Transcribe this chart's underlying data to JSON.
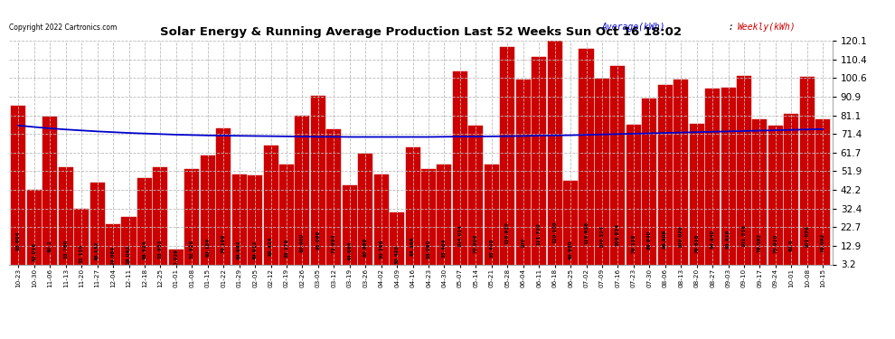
{
  "title": "Solar Energy & Running Average Production Last 52 Weeks Sun Oct 16 18:02",
  "copyright": "Copyright 2022 Cartronics.com",
  "legend_avg": "Average(kWh)",
  "legend_weekly": "Weekly(kWh)",
  "ylim": [
    3.2,
    120.1
  ],
  "yticks": [
    3.2,
    12.9,
    22.7,
    32.4,
    42.2,
    51.9,
    61.7,
    71.4,
    81.1,
    90.9,
    100.6,
    110.4,
    120.1
  ],
  "bar_color": "#cc0000",
  "avg_line_color": "#0000cc",
  "background_color": "#ffffff",
  "grid_color": "#bbbbbb",
  "categories": [
    "10-23",
    "10-30",
    "11-06",
    "11-13",
    "11-20",
    "11-27",
    "12-04",
    "12-11",
    "12-18",
    "12-25",
    "01-01",
    "01-08",
    "01-15",
    "01-22",
    "01-29",
    "02-05",
    "02-12",
    "02-19",
    "02-26",
    "03-05",
    "03-12",
    "03-19",
    "03-26",
    "04-02",
    "04-09",
    "04-16",
    "04-23",
    "04-30",
    "05-07",
    "05-14",
    "05-21",
    "05-28",
    "06-04",
    "06-11",
    "06-18",
    "06-25",
    "07-02",
    "07-09",
    "07-16",
    "07-23",
    "07-30",
    "08-06",
    "08-13",
    "08-20",
    "08-27",
    "09-03",
    "09-10",
    "09-17",
    "09-24",
    "10-01",
    "10-08",
    "10-15"
  ],
  "bar_values": [
    85.904,
    42.016,
    80.2,
    53.76,
    32.12,
    46.132,
    24.084,
    28.042,
    48.524,
    53.852,
    10.928,
    52.928,
    60.184,
    74.188,
    49.992,
    49.912,
    65.424,
    55.176,
    80.9,
    91.096,
    73.964,
    44.664,
    60.988,
    50.396,
    30.42,
    64.396,
    53.08,
    55.464,
    104.024,
    75.904,
    55.448,
    116.92,
    100.0,
    111.72,
    120.1,
    46.88,
    115.656,
    100.324,
    106.834,
    76.138,
    89.84,
    96.908,
    100.02,
    76.616,
    94.84,
    95.616,
    101.536,
    79.092,
    75.91,
    82.0,
    101.056,
    79.092
  ],
  "avg_values": [
    75.8,
    75.0,
    74.3,
    73.7,
    73.2,
    72.7,
    72.3,
    71.9,
    71.6,
    71.3,
    71.0,
    70.8,
    70.6,
    70.5,
    70.4,
    70.3,
    70.2,
    70.1,
    70.0,
    69.9,
    69.9,
    69.8,
    69.8,
    69.8,
    69.8,
    69.8,
    69.8,
    69.9,
    70.0,
    70.0,
    70.1,
    70.2,
    70.3,
    70.5,
    70.6,
    70.7,
    70.9,
    71.1,
    71.3,
    71.5,
    71.7,
    71.9,
    72.1,
    72.3,
    72.5,
    72.7,
    72.9,
    73.1,
    73.3,
    73.5,
    73.7,
    73.9
  ],
  "bar_label_values": [
    "85.904",
    "42.016",
    "80.2",
    "53.760",
    "32.120",
    "46.132",
    "24.084",
    "28.042",
    "48.524",
    "53.852",
    "10.928",
    "52.928",
    "60.184",
    "74.188",
    "49.992",
    "49.912",
    "65.424",
    "55.176",
    "80.900",
    "91.096",
    "73.964",
    "44.664",
    "60.988",
    "50.396",
    "30.420",
    "64.396",
    "53.080",
    "55.464",
    "104.024",
    "75.904",
    "55.448",
    "116.920",
    "100",
    "111.720",
    "120.100",
    "46.880",
    "115.656",
    "100.324",
    "106.834",
    "76.138",
    "89.840",
    "96.908",
    "100.020",
    "76.616",
    "94.840",
    "95.616",
    "101.536",
    "79.092",
    "75.910",
    "82.0",
    "101.056",
    "79.092"
  ]
}
